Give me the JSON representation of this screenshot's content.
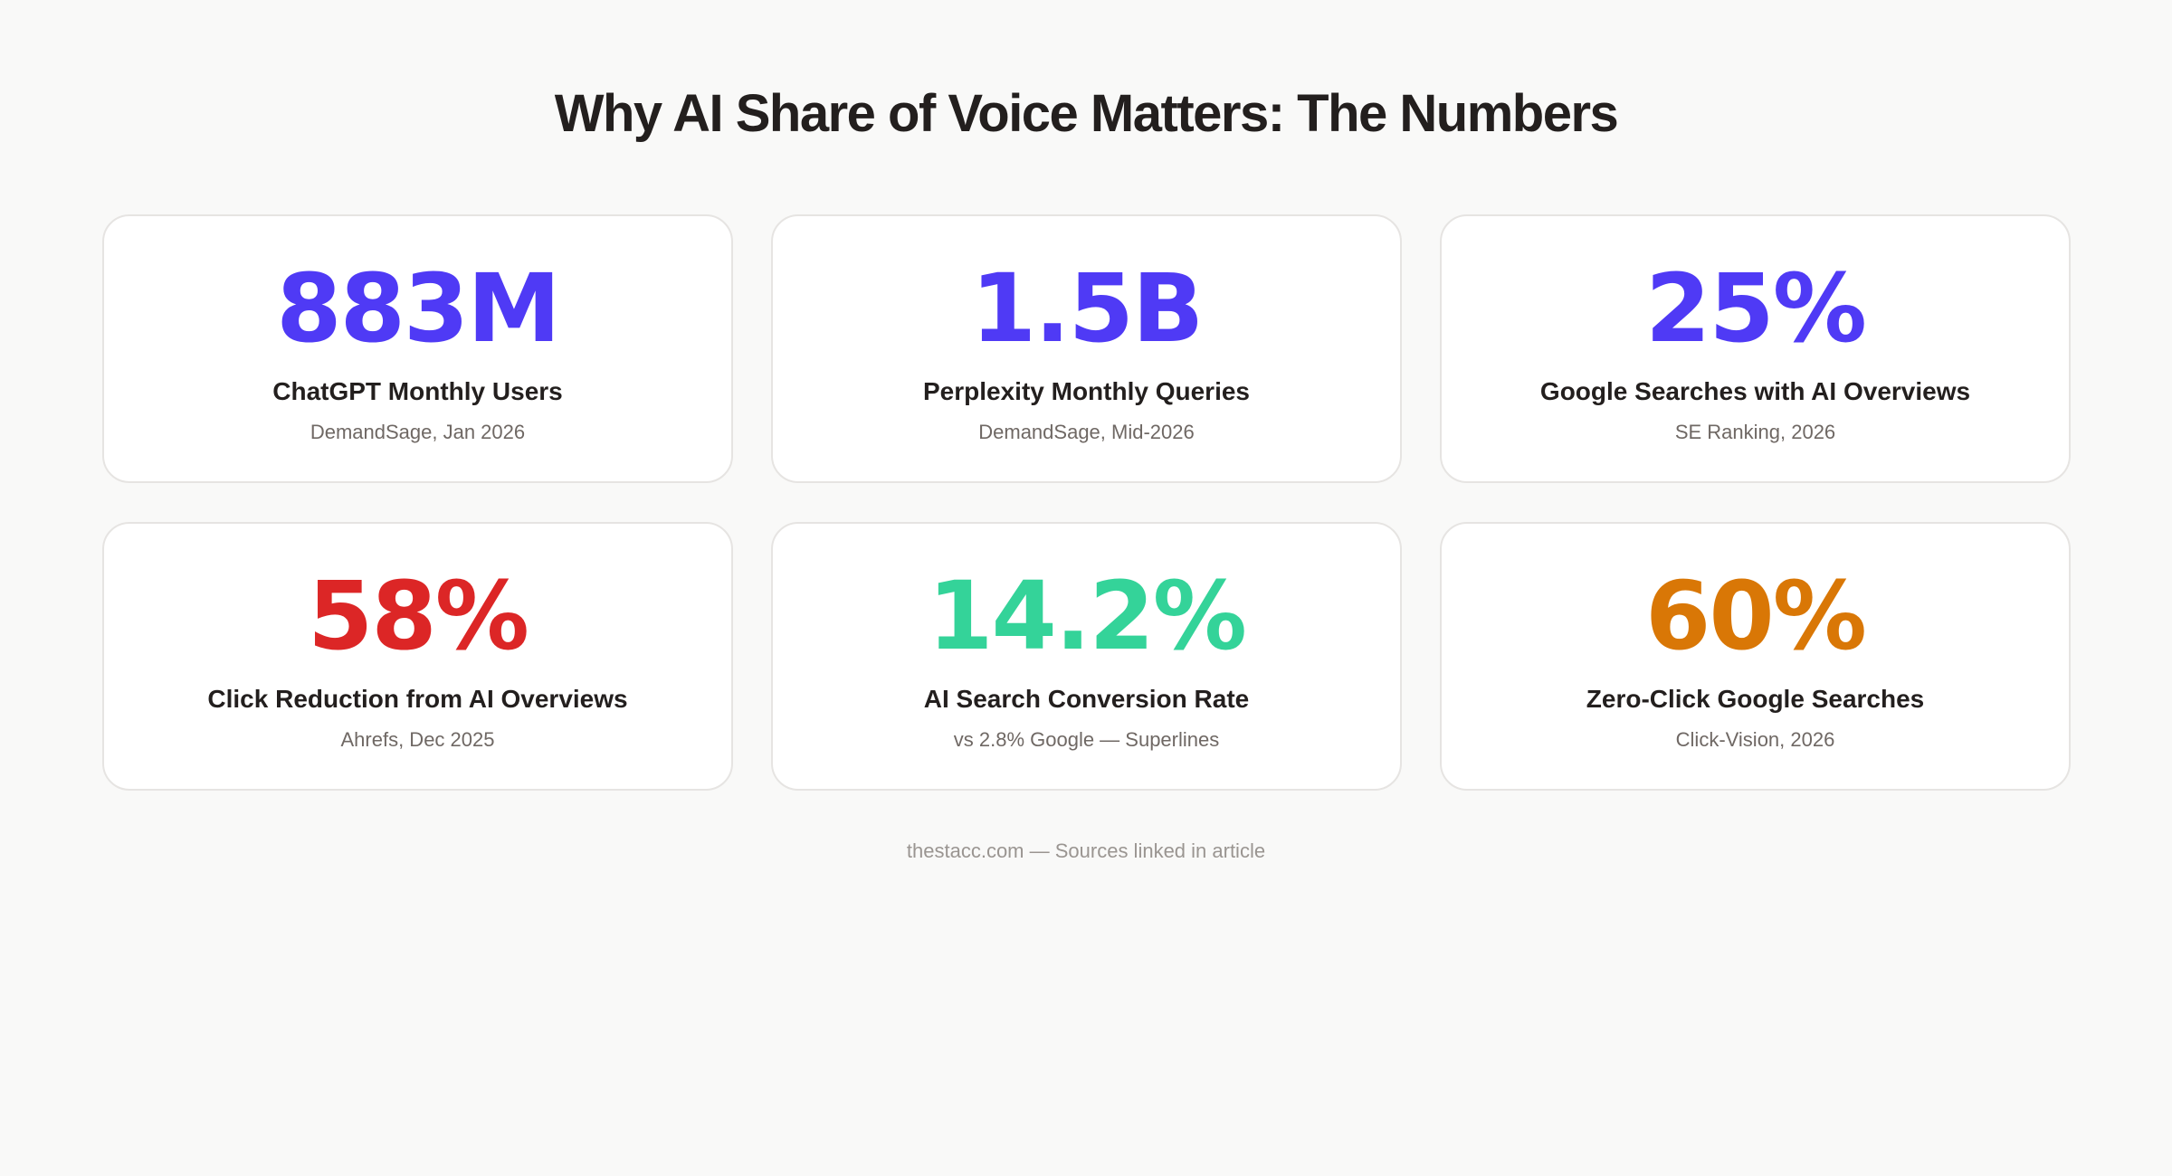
{
  "title": "Why AI Share of Voice Matters: The Numbers",
  "stats": [
    {
      "value": "883M",
      "label": "ChatGPT Monthly Users",
      "source": "DemandSage, Jan 2026",
      "color": "#4f3af5"
    },
    {
      "value": "1.5B",
      "label": "Perplexity Monthly Queries",
      "source": "DemandSage, Mid-2026",
      "color": "#4f3af5"
    },
    {
      "value": "25%",
      "label": "Google Searches with AI Overviews",
      "source": "SE Ranking, 2026",
      "color": "#4f3af5"
    },
    {
      "value": "58%",
      "label": "Click Reduction from AI Overviews",
      "source": "Ahrefs, Dec 2025",
      "color": "#dc2626"
    },
    {
      "value": "14.2%",
      "label": "AI Search Conversion Rate",
      "source": "vs 2.8% Google — Superlines",
      "color": "#34d399"
    },
    {
      "value": "60%",
      "label": "Zero-Click Google Searches",
      "source": "Click-Vision, 2026",
      "color": "#d97706"
    }
  ],
  "footer": "thestacc.com — Sources linked in article"
}
